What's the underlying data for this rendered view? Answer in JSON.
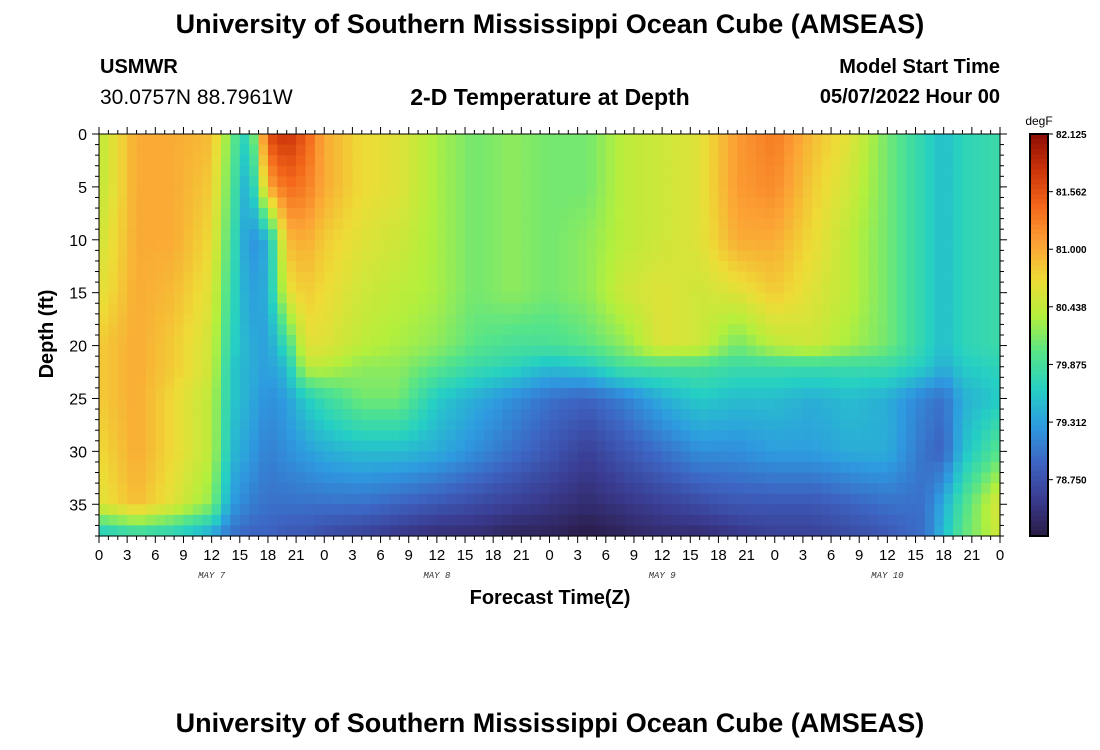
{
  "header": {
    "title": "University of Southern Mississippi Ocean Cube (AMSEAS)",
    "station_id": "USMWR",
    "station_coords": "30.0757N  88.7961W",
    "plot_title": "2-D Temperature at Depth",
    "start_label": "Model Start Time",
    "start_value": "05/07/2022 Hour 00"
  },
  "footer": {
    "title": "University of Southern Mississippi Ocean Cube (AMSEAS)"
  },
  "chart_data": {
    "type": "heatmap",
    "title": "2-D Temperature at Depth",
    "xlabel": "Forecast Time(Z)",
    "ylabel": "Depth (ft)",
    "x_tick_labels": [
      "0",
      "3",
      "6",
      "9",
      "12",
      "15",
      "18",
      "21",
      "0",
      "3",
      "6",
      "9",
      "12",
      "15",
      "18",
      "21",
      "0",
      "3",
      "6",
      "9",
      "12",
      "15",
      "18",
      "21",
      "0",
      "3",
      "6",
      "9",
      "12",
      "15",
      "18",
      "21",
      "0"
    ],
    "x_range_hours": [
      0,
      96
    ],
    "day_labels": [
      {
        "label": "MAY 7",
        "hour": 12
      },
      {
        "label": "MAY 8",
        "hour": 36
      },
      {
        "label": "MAY 9",
        "hour": 60
      },
      {
        "label": "MAY 10",
        "hour": 84
      }
    ],
    "y_ticks": [
      0,
      5,
      10,
      15,
      20,
      25,
      30,
      35
    ],
    "y_range_ft": [
      0,
      38
    ],
    "colorbar": {
      "unit": "degF",
      "min": 78.2,
      "max": 82.125,
      "tick_values": [
        82.125,
        81.562,
        81.0,
        80.438,
        79.875,
        79.312,
        78.75
      ],
      "tick_labels": [
        "82.125",
        "81.562",
        "81.000",
        "80.438",
        "79.875",
        "79.312",
        "78.750"
      ],
      "colormap": [
        "#2a1b45",
        "#3a3b90",
        "#3d64c2",
        "#2e9ae0",
        "#25cfc4",
        "#55e48a",
        "#b3ef3d",
        "#eedc36",
        "#fca235",
        "#f3681a",
        "#cc3309",
        "#8d0d05"
      ]
    },
    "z_grid": {
      "hours": [
        0,
        4,
        8,
        12,
        14,
        16,
        18,
        20,
        22,
        24,
        28,
        32,
        36,
        40,
        44,
        48,
        52,
        56,
        60,
        64,
        68,
        72,
        76,
        80,
        84,
        88,
        90,
        92,
        96
      ],
      "depths_ft": [
        0,
        5,
        10,
        15,
        20,
        22,
        25,
        30,
        35,
        38
      ],
      "values_degF": [
        [
          80.4,
          81.0,
          81.0,
          80.9,
          80.1,
          79.6,
          81.6,
          81.8,
          81.5,
          81.0,
          80.7,
          80.6,
          80.3,
          80.1,
          80.2,
          80.1,
          80.1,
          80.4,
          80.5,
          80.6,
          81.1,
          81.3,
          80.9,
          80.6,
          80.1,
          79.7,
          79.5,
          79.7,
          79.8
        ],
        [
          80.4,
          81.0,
          81.0,
          80.8,
          80.0,
          79.3,
          81.0,
          81.4,
          81.3,
          81.0,
          80.7,
          80.6,
          80.3,
          80.1,
          80.2,
          80.1,
          80.1,
          80.4,
          80.5,
          80.6,
          81.1,
          81.2,
          80.8,
          80.5,
          80.1,
          79.7,
          79.5,
          79.7,
          79.8
        ],
        [
          80.5,
          81.0,
          81.0,
          80.7,
          79.9,
          79.2,
          79.4,
          80.9,
          81.0,
          80.8,
          80.6,
          80.5,
          80.3,
          80.1,
          80.2,
          80.1,
          80.2,
          80.4,
          80.5,
          80.6,
          81.0,
          81.0,
          80.7,
          80.4,
          80.1,
          79.7,
          79.5,
          79.7,
          79.8
        ],
        [
          80.6,
          81.0,
          80.9,
          80.6,
          79.8,
          79.3,
          79.4,
          80.6,
          80.8,
          80.7,
          80.5,
          80.4,
          80.3,
          80.1,
          80.2,
          80.1,
          80.2,
          80.5,
          80.6,
          80.5,
          80.6,
          80.8,
          80.6,
          80.4,
          80.1,
          79.7,
          79.5,
          79.7,
          79.8
        ],
        [
          80.8,
          81.0,
          80.8,
          80.5,
          79.7,
          79.4,
          79.3,
          79.8,
          80.6,
          80.6,
          80.4,
          80.3,
          80.2,
          80.0,
          79.9,
          79.9,
          80.0,
          80.2,
          80.6,
          80.5,
          80.1,
          80.4,
          80.5,
          80.3,
          80.1,
          79.7,
          79.5,
          79.7,
          79.8
        ],
        [
          80.8,
          81.0,
          80.8,
          80.5,
          79.6,
          79.4,
          79.3,
          79.5,
          80.4,
          80.4,
          80.2,
          80.2,
          80.0,
          79.8,
          79.7,
          79.5,
          79.6,
          79.9,
          79.9,
          79.9,
          79.8,
          79.8,
          79.8,
          79.8,
          79.8,
          79.6,
          79.4,
          79.6,
          79.7
        ],
        [
          80.8,
          81.0,
          80.7,
          80.4,
          79.6,
          79.4,
          79.2,
          79.3,
          79.6,
          79.8,
          80.1,
          80.1,
          79.6,
          79.4,
          79.2,
          79.0,
          78.9,
          79.1,
          79.4,
          79.6,
          79.5,
          79.5,
          79.4,
          79.5,
          79.4,
          79.1,
          79.0,
          79.4,
          79.6
        ],
        [
          80.7,
          81.0,
          80.7,
          80.4,
          79.5,
          79.3,
          79.1,
          79.2,
          79.3,
          79.4,
          79.5,
          79.5,
          79.4,
          79.2,
          79.0,
          78.8,
          78.6,
          78.8,
          79.0,
          79.2,
          79.2,
          79.3,
          79.3,
          79.4,
          79.4,
          79.0,
          78.9,
          79.5,
          80.0
        ],
        [
          80.6,
          80.9,
          80.6,
          80.2,
          79.3,
          79.1,
          79.0,
          79.0,
          79.0,
          79.0,
          79.0,
          78.9,
          78.8,
          78.7,
          78.6,
          78.5,
          78.4,
          78.5,
          78.6,
          78.7,
          78.8,
          78.8,
          78.8,
          78.9,
          79.0,
          79.0,
          79.4,
          79.9,
          80.6
        ],
        [
          79.5,
          79.7,
          79.6,
          79.3,
          79.0,
          78.9,
          78.9,
          78.8,
          78.8,
          78.7,
          78.6,
          78.5,
          78.4,
          78.4,
          78.3,
          78.3,
          78.2,
          78.3,
          78.4,
          78.4,
          78.5,
          78.6,
          78.6,
          78.7,
          78.8,
          79.0,
          79.5,
          80.0,
          80.5
        ]
      ]
    }
  }
}
